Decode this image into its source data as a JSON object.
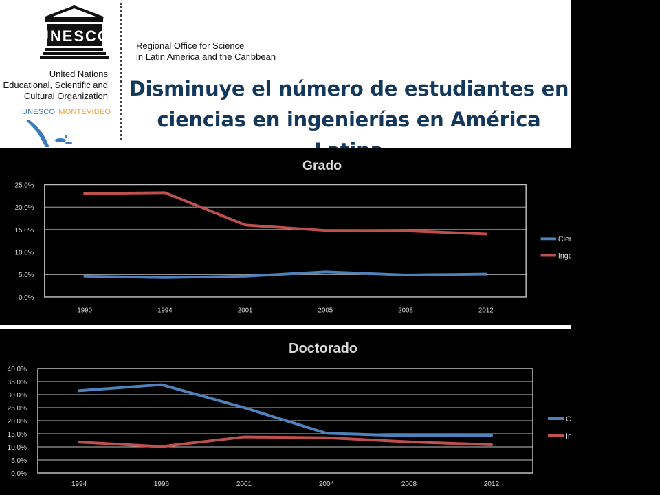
{
  "header": {
    "org_name": "United Nations\nEducational, Scientific and\nCultural Organization",
    "logo_text": "UNESCO",
    "unesco_tag": "UNESCO",
    "montevideo_tag": "MONTEVIDEO",
    "regional_office": "Regional Office for Science\nin Latin America and the Caribbean",
    "title": "Disminuye el número de estudiantes en ciencias en ingenierías en América Latina"
  },
  "colors": {
    "ciencias": "#4f81bd",
    "ingenieria": "#c0504d",
    "plot_bg": "#000000",
    "plot_border": "#bfbfbf",
    "title_color": "#14385b"
  },
  "chart_data": [
    {
      "type": "line",
      "title": "Grado",
      "categories": [
        "1990",
        "1994",
        "2001",
        "2005",
        "2008",
        "2012"
      ],
      "yticks": [
        "0.0%",
        "5.0%",
        "10.0%",
        "15.0%",
        "20.0%",
        "25.0%"
      ],
      "ylim": [
        0,
        25
      ],
      "grid": true,
      "legend_position": "right",
      "series": [
        {
          "name": "Ciencias Naturales",
          "values": [
            4.6,
            4.3,
            4.6,
            5.6,
            4.9,
            5.1
          ]
        },
        {
          "name": "Ingeniería y tecnología",
          "values": [
            23.0,
            23.2,
            16.0,
            14.8,
            14.7,
            14.0
          ]
        }
      ]
    },
    {
      "type": "line",
      "title": "Doctorado",
      "categories": [
        "1994",
        "1996",
        "2001",
        "2004",
        "2008",
        "2012"
      ],
      "yticks": [
        "0.0%",
        "5.0%",
        "10.0%",
        "15.0%",
        "20.0%",
        "25.0%",
        "30.0%",
        "35.0%",
        "40.0%"
      ],
      "ylim": [
        0,
        40
      ],
      "grid": true,
      "legend_position": "right",
      "series": [
        {
          "name": "Ciencias Naturales",
          "values": [
            31.5,
            33.8,
            25.0,
            15.2,
            14.2,
            14.4
          ]
        },
        {
          "name": "Ingeniería y tecnología",
          "values": [
            11.8,
            10.1,
            13.8,
            13.5,
            11.9,
            10.8
          ]
        }
      ]
    }
  ]
}
